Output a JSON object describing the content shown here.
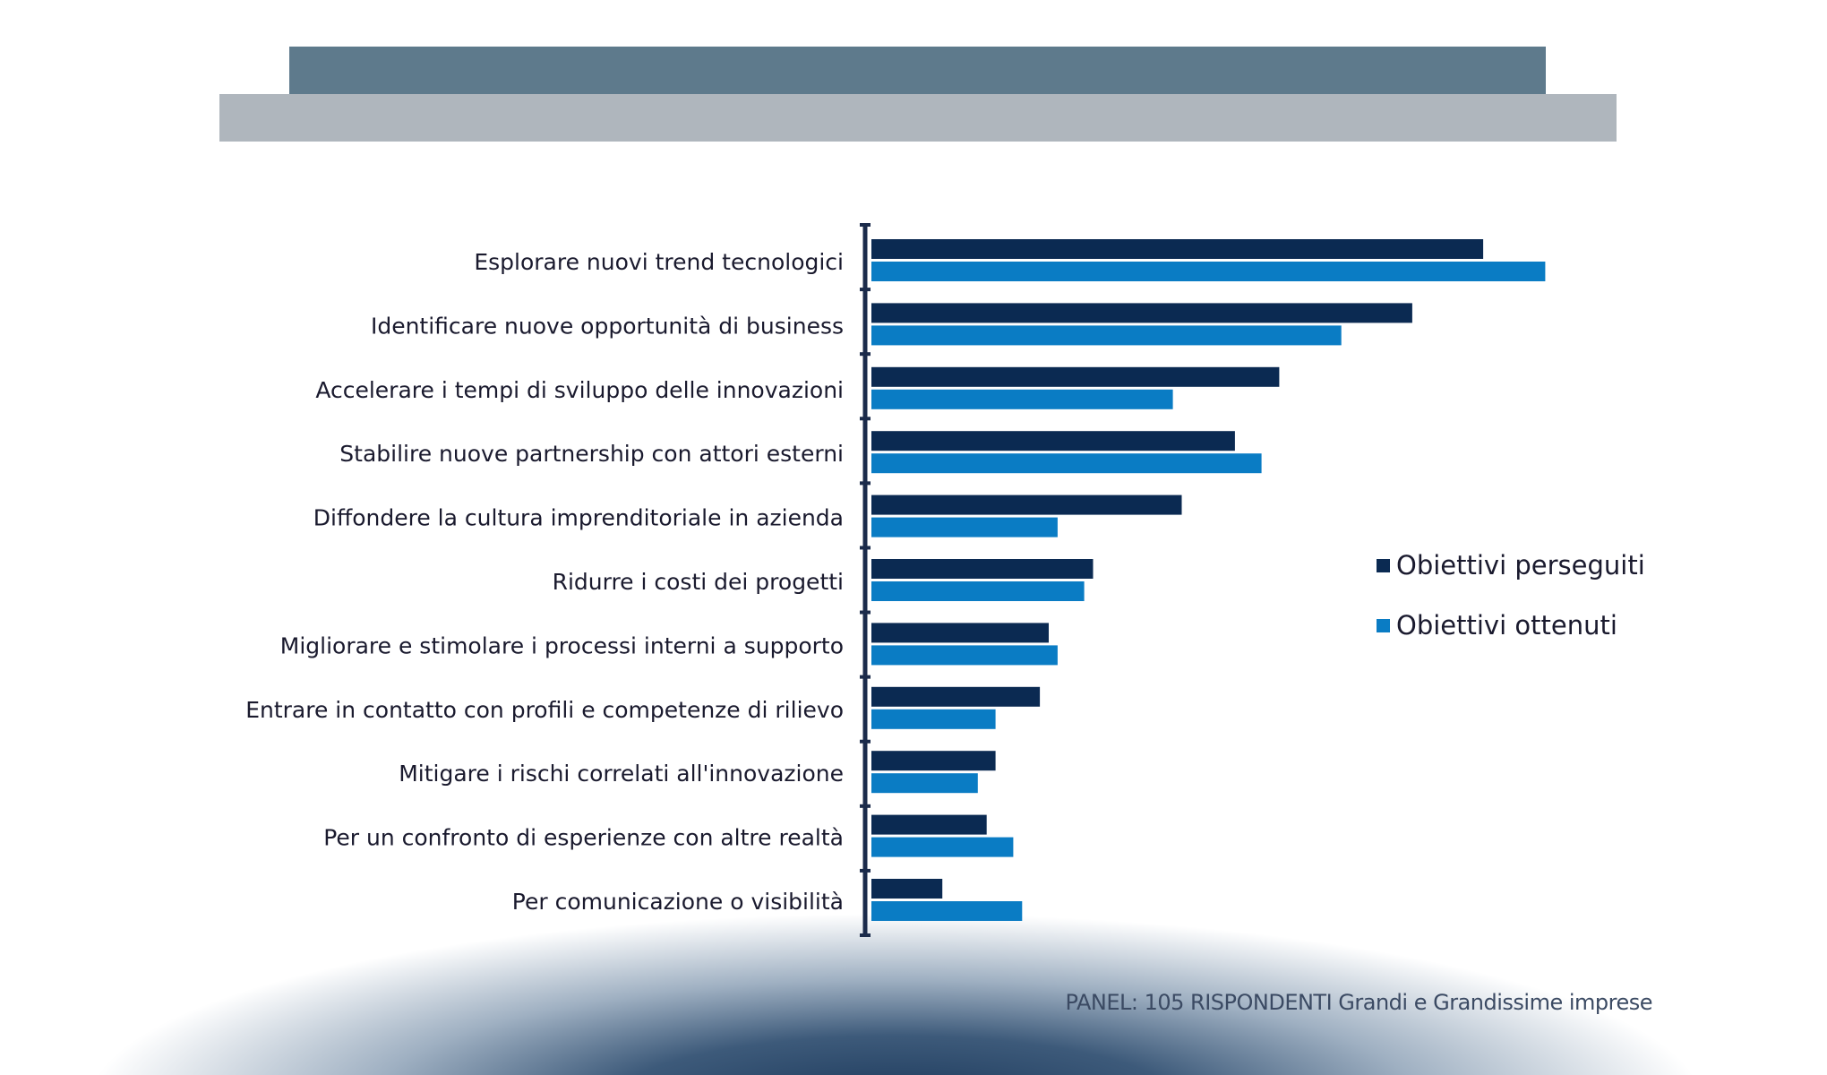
{
  "colors": {
    "banner_dark": "#5e7a8c",
    "banner_light": "#afb6bd",
    "series_1": "#0b2a52",
    "series_2": "#0a7cc4",
    "axis": "#1b2b4b"
  },
  "chart_data": {
    "type": "bar",
    "orientation": "horizontal",
    "title": "",
    "xlabel": "",
    "ylabel": "",
    "note": "values estimated from bar lengths; no value axis printed",
    "grid": false,
    "legend_position": "right",
    "categories": [
      "Esplorare nuovi trend tecnologici",
      "Identificare nuove opportunità di business",
      "Accelerare i tempi di sviluppo delle innovazioni",
      "Stabilire nuove partnership con attori esterni",
      "Diffondere la cultura imprenditoriale in azienda",
      "Ridurre i costi dei progetti",
      "Migliorare e stimolare i processi interni a supporto",
      "Entrare in contatto con profili e competenze di rilievo",
      "Mitigare i rischi correlati all'innovazione",
      "Per un confronto di esperienze con altre realtà",
      "Per comunicazione o visibilità"
    ],
    "series": [
      {
        "name": "Obiettivi perseguiti",
        "values": [
          69,
          61,
          46,
          41,
          35,
          25,
          20,
          19,
          14,
          13,
          8
        ]
      },
      {
        "name": "Obiettivi ottenuti",
        "values": [
          76,
          53,
          34,
          44,
          21,
          24,
          21,
          14,
          12,
          16,
          17
        ]
      }
    ]
  },
  "footer": "PANEL: 105 RISPONDENTI Grandi e Grandissime imprese"
}
